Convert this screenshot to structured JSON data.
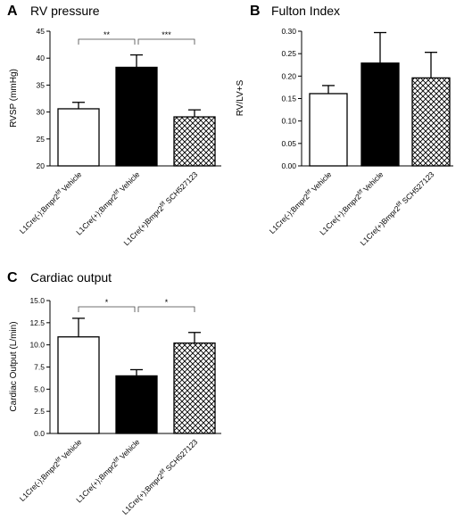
{
  "chart_data": [
    {
      "panel": "A",
      "type": "bar",
      "title": "RV pressure",
      "ylabel": "RVSP (mmHg)",
      "xlabel": "",
      "ylim": [
        20,
        45
      ],
      "yticks": [
        "20",
        "25",
        "30",
        "35",
        "40",
        "45"
      ],
      "categories": [
        {
          "main": "L1Cre(-);Bmpr2",
          "sup": "f/f",
          "tail": " Vehicle"
        },
        {
          "main": "L1Cre(+);Bmpr2",
          "sup": "f/f",
          "tail": " Vehicle"
        },
        {
          "main": "L1Cre(+)Bmpr2",
          "sup": "f/f",
          "tail": " SCH527123"
        }
      ],
      "values": [
        30.6,
        38.3,
        29.1
      ],
      "errors": [
        1.2,
        2.3,
        1.3
      ],
      "fills": [
        "white",
        "black",
        "crosshatch"
      ],
      "significance": [
        {
          "from": 0,
          "to": 1,
          "label": "**"
        },
        {
          "from": 1,
          "to": 2,
          "label": "***"
        }
      ]
    },
    {
      "panel": "B",
      "type": "bar",
      "title": "Fulton Index",
      "ylabel": "RV/LV+S",
      "xlabel": "",
      "ylim": [
        0,
        0.3
      ],
      "yticks": [
        "0.00",
        "0.05",
        "0.10",
        "0.15",
        "0.20",
        "0.25",
        "0.30"
      ],
      "categories": [
        {
          "main": "L1Cre(-);Bmpr2",
          "sup": "f/f",
          "tail": " Vehicle"
        },
        {
          "main": "L1Cre(+);Bmpr2",
          "sup": "f/f",
          "tail": " Vehicle"
        },
        {
          "main": "L1Cre(+)Bmpr2",
          "sup": "f/f",
          "tail": " SCH527123"
        }
      ],
      "values": [
        0.161,
        0.229,
        0.196
      ],
      "errors": [
        0.018,
        0.068,
        0.057
      ],
      "fills": [
        "white",
        "black",
        "crosshatch"
      ],
      "significance": []
    },
    {
      "panel": "C",
      "type": "bar",
      "title": "Cardiac output",
      "ylabel": "Cardiac Output (L/min)",
      "xlabel": "",
      "ylim": [
        0,
        15
      ],
      "yticks": [
        "0.0",
        "2.5",
        "5.0",
        "7.5",
        "10.0",
        "12.5",
        "15.0"
      ],
      "categories": [
        {
          "main": "L1Cre(-);Bmpr2",
          "sup": "f/f",
          "tail": " Vehicle"
        },
        {
          "main": "L1Cre(+);Bmpr2",
          "sup": "f/f",
          "tail": " Vehicle"
        },
        {
          "main": "L1Cre(+);Bmpr2",
          "sup": "f/f",
          "tail": " SCH527123"
        }
      ],
      "values": [
        10.9,
        6.5,
        10.2
      ],
      "errors": [
        2.1,
        0.7,
        1.2
      ],
      "fills": [
        "white",
        "black",
        "crosshatch"
      ],
      "significance": [
        {
          "from": 0,
          "to": 1,
          "label": "*"
        },
        {
          "from": 1,
          "to": 2,
          "label": "*"
        }
      ]
    }
  ]
}
